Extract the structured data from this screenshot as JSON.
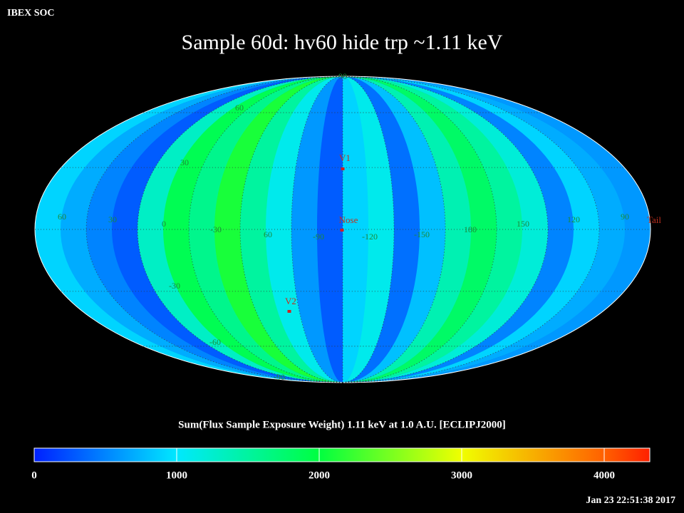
{
  "chart_data": {
    "type": "heatmap",
    "header": "IBEX SOC",
    "title": "Sample 60d: hv60 hide trp ~1.11 keV",
    "values": [
      900,
      700,
      500,
      300,
      1300,
      1900,
      1600,
      2100,
      1500,
      1100,
      600,
      300,
      900,
      1100,
      400,
      800,
      1400,
      1800,
      1500,
      1200,
      500,
      900,
      700,
      600
    ],
    "equator_labels": [
      "60",
      "30",
      "0",
      "-30",
      "60",
      "-90",
      "-120",
      "-150",
      "180",
      "150",
      "120",
      "90"
    ],
    "latitude_labels": [
      "90",
      "60",
      "30",
      "-30",
      "-60",
      "-90"
    ],
    "markers": [
      "V1",
      "Nose",
      "V2",
      "Tail"
    ],
    "colorbar": {
      "label": "Sum(Flux Sample Exposure Weight)  1.11 keV at 1.0 A.U. [ECLIPJ2000]",
      "xlim": [
        0,
        4320
      ],
      "xticks": [
        0,
        1000,
        2000,
        3000,
        4000
      ]
    },
    "timestamp": "Jan 23 22:51:38 2017"
  }
}
